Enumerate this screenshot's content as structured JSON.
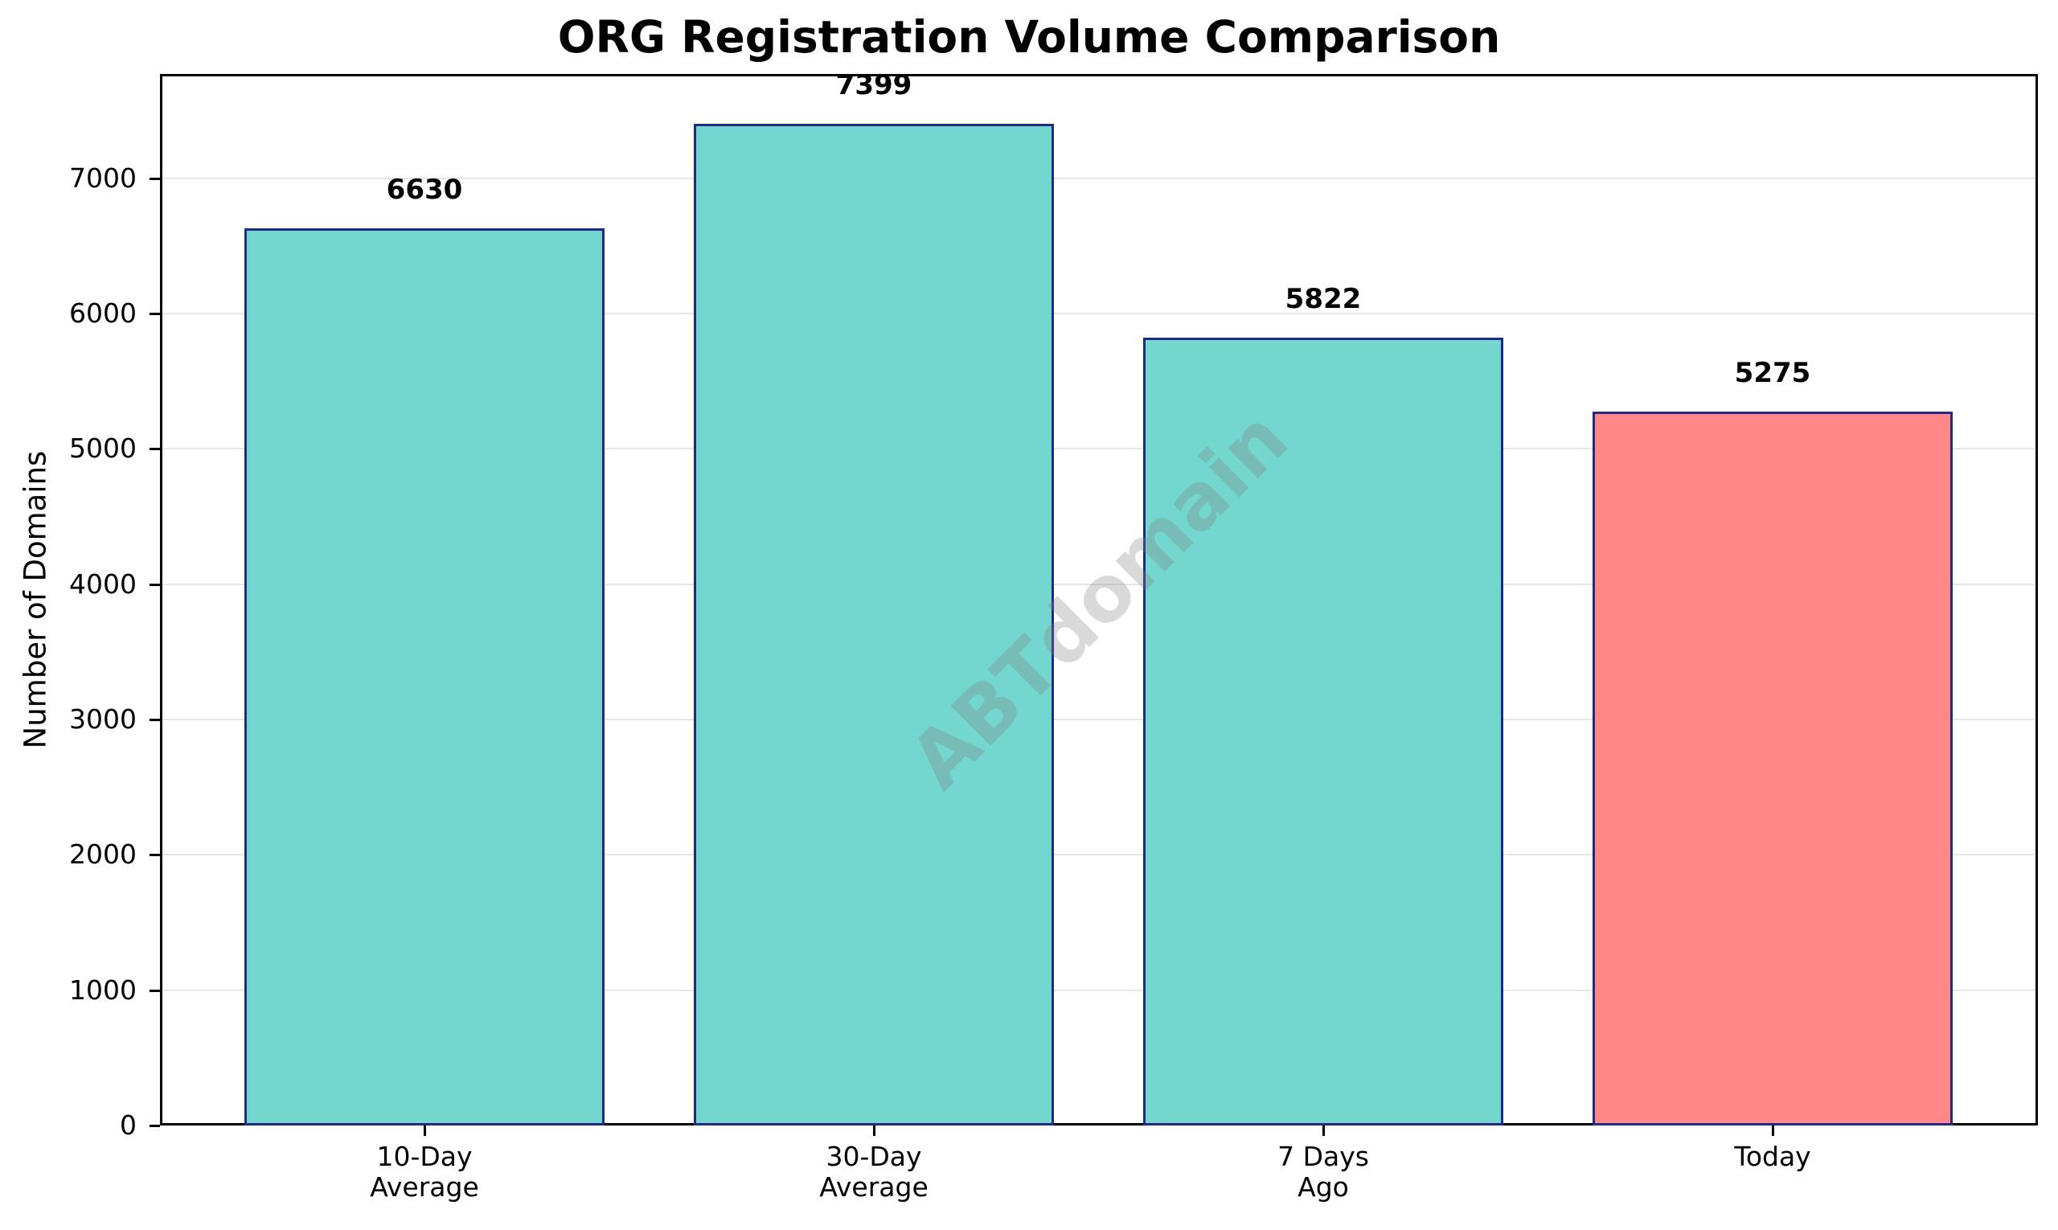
{
  "chart_data": {
    "type": "bar",
    "title": "ORG Registration Volume Comparison",
    "xlabel": "",
    "ylabel": "Number of Domains",
    "categories": [
      "10-Day\nAverage",
      "30-Day\nAverage",
      "7 Days\nAgo",
      "Today"
    ],
    "values": [
      6630,
      7399,
      5822,
      5275
    ],
    "value_labels": [
      "6630",
      "7399",
      "5822",
      "5275"
    ],
    "bar_colors": [
      "#73d6cf",
      "#73d6cf",
      "#73d6cf",
      "#ff8787"
    ],
    "edge_color": "#1f2a80",
    "ylim": [
      0,
      7770
    ],
    "yticks": [
      0,
      1000,
      2000,
      3000,
      4000,
      5000,
      6000,
      7000
    ],
    "ytick_labels": [
      "0",
      "1000",
      "2000",
      "3000",
      "4000",
      "5000",
      "6000",
      "7000"
    ],
    "grid": {
      "axis": "y",
      "on": true,
      "color": "#e6e6e6"
    },
    "legend": null,
    "watermark": "ABTdomain"
  }
}
